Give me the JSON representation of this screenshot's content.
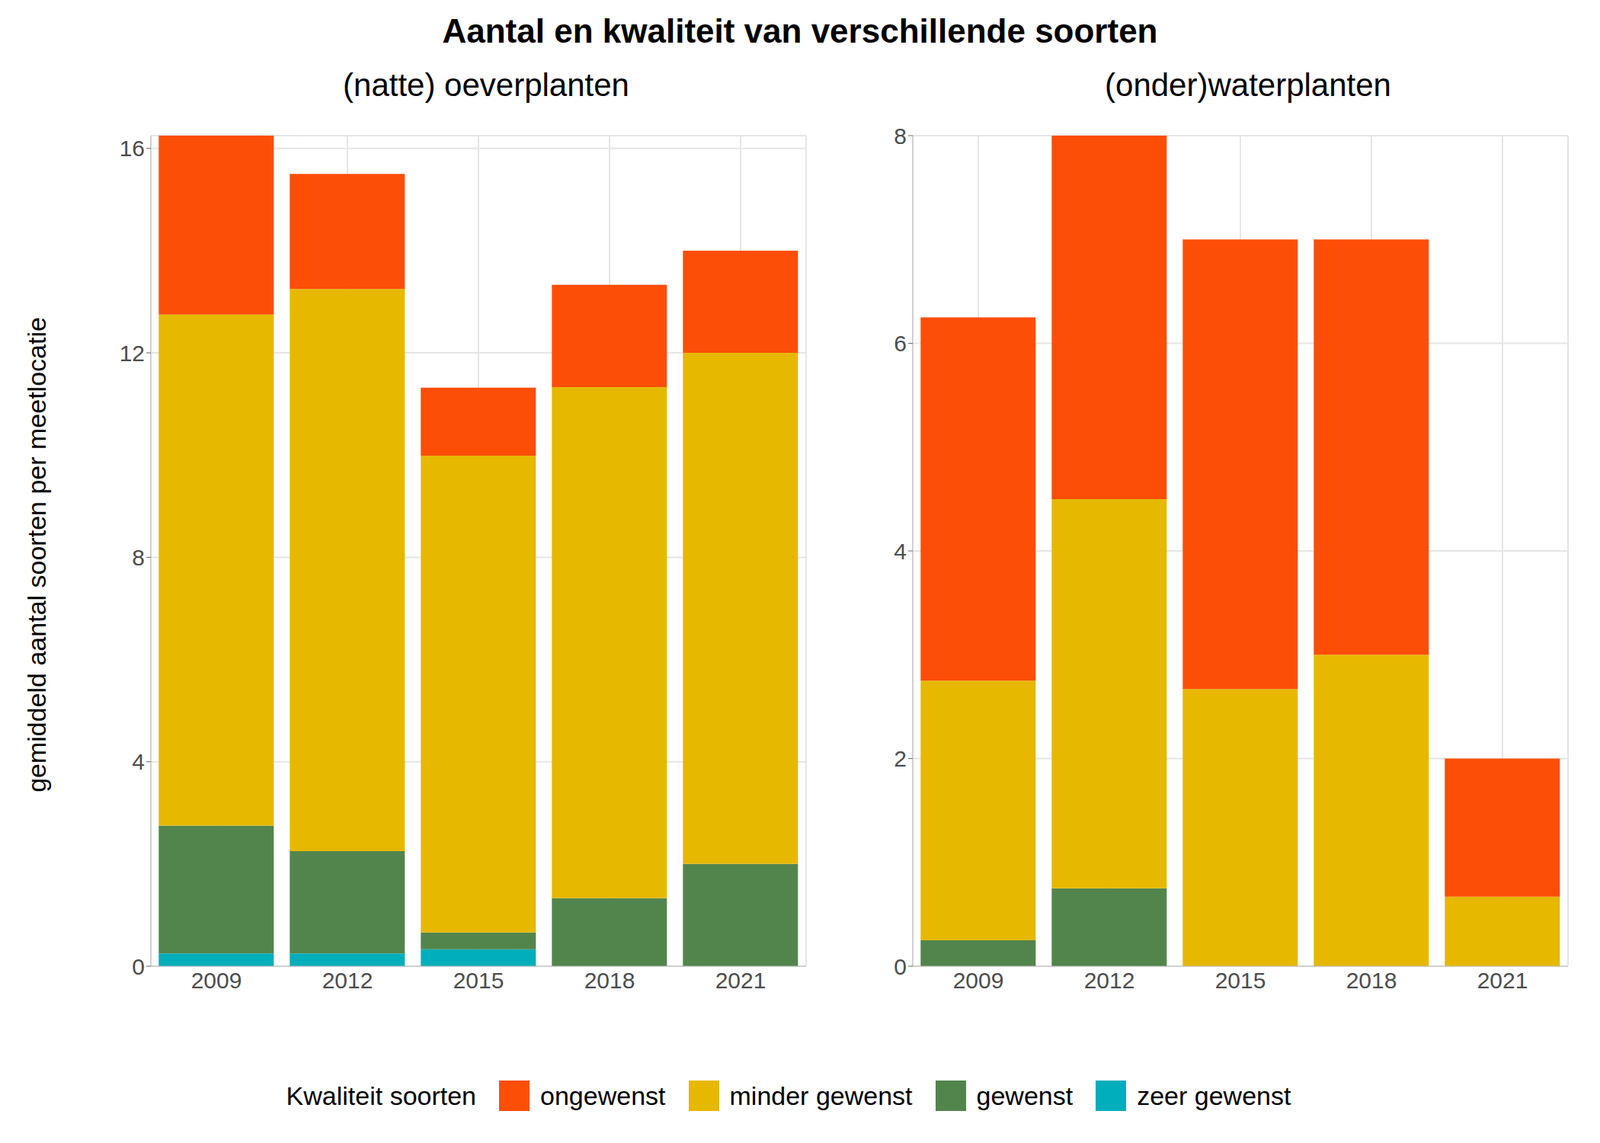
{
  "title": "Aantal en kwaliteit van verschillende soorten",
  "ylabel": "gemiddeld aantal soorten per meetlocatie",
  "legend_title": "Kwaliteit soorten",
  "legend": "bottom",
  "chart_data": [
    {
      "type": "bar",
      "stacked": true,
      "grid": true,
      "subtitle": "(natte) oeverplanten",
      "categories": [
        "2009",
        "2012",
        "2015",
        "2018",
        "2021"
      ],
      "ylim": [
        0,
        16.25
      ],
      "yticks": [
        0,
        4,
        8,
        12,
        16
      ],
      "series": [
        {
          "name": "ongewenst",
          "color": "#FC4E07",
          "values": [
            3.5,
            2.25,
            1.33,
            2.0,
            2.0
          ]
        },
        {
          "name": "minder gewenst",
          "color": "#E7B800",
          "values": [
            10,
            11,
            9.33,
            10,
            10
          ]
        },
        {
          "name": "gewenst",
          "color": "#52854C",
          "values": [
            2.5,
            2.0,
            0.33,
            1.33,
            2.0
          ]
        },
        {
          "name": "zeer gewenst",
          "color": "#00AFBB",
          "values": [
            0.25,
            0.25,
            0.33,
            0,
            0
          ]
        }
      ]
    },
    {
      "type": "bar",
      "stacked": true,
      "grid": true,
      "subtitle": "(onder)waterplanten",
      "categories": [
        "2009",
        "2012",
        "2015",
        "2018",
        "2021"
      ],
      "ylim": [
        0,
        8
      ],
      "yticks": [
        0,
        2,
        4,
        6,
        8
      ],
      "series": [
        {
          "name": "ongewenst",
          "color": "#FC4E07",
          "values": [
            3.5,
            3.5,
            4.33,
            4,
            1.33
          ]
        },
        {
          "name": "minder gewenst",
          "color": "#E7B800",
          "values": [
            2.5,
            3.75,
            2.67,
            3,
            0.67
          ]
        },
        {
          "name": "gewenst",
          "color": "#52854C",
          "values": [
            0.25,
            0.75,
            0,
            0,
            0
          ]
        },
        {
          "name": "zeer gewenst",
          "color": "#00AFBB",
          "values": [
            0,
            0,
            0,
            0,
            0
          ]
        }
      ]
    }
  ]
}
